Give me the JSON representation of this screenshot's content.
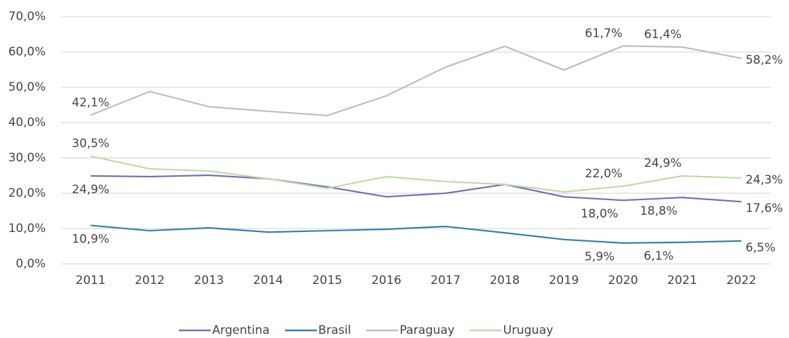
{
  "chart_data": {
    "type": "line",
    "categories": [
      "2011",
      "2012",
      "2013",
      "2014",
      "2015",
      "2016",
      "2017",
      "2018",
      "2019",
      "2020",
      "2021",
      "2022"
    ],
    "series": [
      {
        "name": "Argentina",
        "color": "#7b6fae",
        "values": [
          24.9,
          24.7,
          25.1,
          24.1,
          21.8,
          19.0,
          20.0,
          22.5,
          19.0,
          18.0,
          18.8,
          17.6
        ],
        "value_labels": [
          "24,9%",
          null,
          null,
          null,
          null,
          null,
          null,
          null,
          null,
          "18,0%",
          "18,8%",
          "17,6%"
        ]
      },
      {
        "name": "Brasil",
        "color": "#3a7ea6",
        "values": [
          10.9,
          9.4,
          10.2,
          9.0,
          9.4,
          9.8,
          10.6,
          8.8,
          6.9,
          5.9,
          6.1,
          6.5
        ],
        "value_labels": [
          "10,9%",
          null,
          null,
          null,
          null,
          null,
          null,
          null,
          null,
          "5,9%",
          "6,1%",
          "6,5%"
        ]
      },
      {
        "name": "Paraguay",
        "color": "#bdbdbd",
        "values": [
          42.1,
          48.8,
          44.5,
          43.2,
          42.0,
          47.6,
          55.7,
          61.6,
          54.9,
          61.7,
          61.4,
          58.2
        ],
        "value_labels": [
          "42,1%",
          null,
          null,
          null,
          null,
          null,
          null,
          null,
          null,
          "61,7%",
          "61,4%",
          "58,2%"
        ]
      },
      {
        "name": "Uruguay",
        "color": "#bcdca8",
        "values": [
          30.5,
          26.9,
          26.3,
          24.1,
          21.4,
          24.7,
          23.3,
          22.5,
          20.4,
          22.0,
          24.9,
          24.3
        ],
        "value_labels": [
          "30,5%",
          null,
          null,
          null,
          null,
          null,
          null,
          null,
          null,
          "22,0%",
          "24,9%",
          "24,3%"
        ]
      }
    ],
    "ylim": [
      0,
      70
    ],
    "yticks": [
      {
        "value": 0,
        "label": "0,0%"
      },
      {
        "value": 10,
        "label": "10,0%"
      },
      {
        "value": 20,
        "label": "20,0%"
      },
      {
        "value": 30,
        "label": "30,0%"
      },
      {
        "value": 40,
        "label": "40,0%"
      },
      {
        "value": 50,
        "label": "50,0%"
      },
      {
        "value": 60,
        "label": "60,0%"
      },
      {
        "value": 70,
        "label": "70,0%"
      }
    ],
    "grid": true,
    "legend": "bottom"
  }
}
